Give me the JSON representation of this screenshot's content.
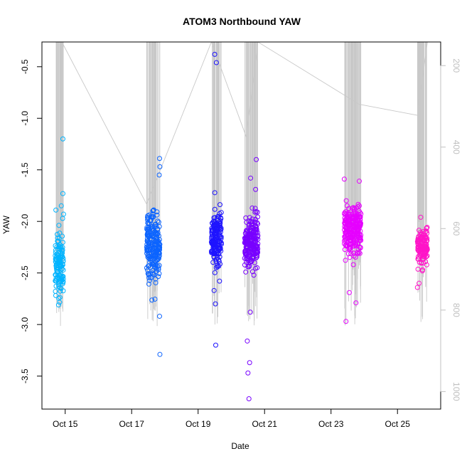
{
  "chart_data": {
    "type": "scatter",
    "title": "ATOM3 Northbound YAW",
    "xlabel": "Date",
    "ylabel": "YAW",
    "x_ticks": [
      "Oct 15",
      "Oct 17",
      "Oct 19",
      "Oct 21",
      "Oct 23",
      "Oct 25"
    ],
    "y_ticks": [
      "-0.5",
      "-1.0",
      "-1.5",
      "-2.0",
      "-2.5",
      "-3.0",
      "-3.5"
    ],
    "y2_ticks": [
      "200",
      "400",
      "600",
      "800",
      "1000"
    ],
    "xlim_days": [
      14.3,
      26.3
    ],
    "ylim": [
      -3.82,
      -0.26
    ],
    "y2lim": [
      142,
      1043
    ],
    "grid": false,
    "colors": {
      "secondary_line": "#c8c8c8",
      "axis": "#000000",
      "secondary_axis": "#c0c0c0"
    },
    "series": [
      {
        "values": "",
        "color": "#00b4ff",
        "x_range": [
          14.7,
          14.95
        ],
        "y_center": -2.42,
        "y_spread": 0.15,
        "n": 130,
        "extra": [
          [
            14.93,
            -1.2
          ],
          [
            14.93,
            -1.73
          ],
          [
            14.95,
            -1.93
          ],
          [
            14.72,
            -1.89
          ],
          [
            14.8,
            -2.81
          ]
        ]
      },
      {
        "color": "#0c64ff",
        "x_range": [
          17.45,
          17.85
        ],
        "y_center": -2.22,
        "y_spread": 0.16,
        "n": 210,
        "extra": [
          [
            17.84,
            -1.39
          ],
          [
            17.85,
            -1.47
          ],
          [
            17.83,
            -1.55
          ],
          [
            17.84,
            -2.92
          ],
          [
            17.85,
            -3.29
          ]
        ]
      },
      {
        "color": "#1e14ff",
        "x_range": [
          19.4,
          19.7
        ],
        "y_center": -2.18,
        "y_spread": 0.14,
        "n": 170,
        "extra": [
          [
            19.5,
            -0.38
          ],
          [
            19.55,
            -0.46
          ],
          [
            19.48,
            -2.67
          ],
          [
            19.52,
            -2.8
          ],
          [
            19.53,
            -3.2
          ]
        ]
      },
      {
        "color": "#7800ff",
        "x_range": [
          20.4,
          20.8
        ],
        "y_center": -2.22,
        "y_spread": 0.13,
        "n": 210,
        "extra": [
          [
            20.75,
            -1.4
          ],
          [
            20.58,
            -1.58
          ],
          [
            20.73,
            -1.69
          ],
          [
            20.57,
            -2.88
          ],
          [
            20.48,
            -3.16
          ],
          [
            20.55,
            -3.37
          ],
          [
            20.5,
            -3.47
          ],
          [
            20.53,
            -3.72
          ]
        ]
      },
      {
        "color": "#e600ff",
        "x_range": [
          23.4,
          23.9
        ],
        "y_center": -2.08,
        "y_spread": 0.12,
        "n": 250,
        "extra": [
          [
            23.4,
            -1.59
          ],
          [
            23.85,
            -1.61
          ],
          [
            23.75,
            -2.79
          ],
          [
            23.45,
            -2.97
          ],
          [
            23.55,
            -2.69
          ]
        ]
      },
      {
        "color": "#ff14c8",
        "x_range": [
          25.6,
          25.9
        ],
        "y_center": -2.25,
        "y_spread": 0.09,
        "n": 130,
        "extra": [
          [
            25.7,
            -1.96
          ],
          [
            25.75,
            -2.48
          ],
          [
            25.65,
            -2.6
          ],
          [
            25.6,
            -2.64
          ]
        ]
      }
    ],
    "secondary_series": {
      "name": "",
      "axis": "right",
      "type": "line",
      "x_range": [
        14.7,
        25.9
      ],
      "y_range_right": [
        142,
        790
      ],
      "connectors": [
        [
          14.9,
          142
        ],
        [
          17.45,
          540
        ],
        [
          19.4,
          142
        ],
        [
          20.45,
          375
        ],
        [
          20.8,
          142
        ],
        [
          23.85,
          295
        ],
        [
          25.6,
          322
        ],
        [
          25.9,
          142
        ]
      ]
    }
  }
}
